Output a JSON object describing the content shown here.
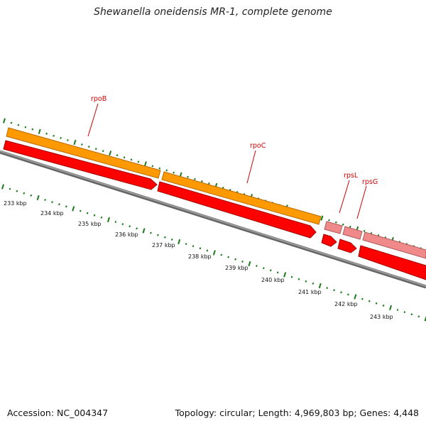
{
  "title": "Shewanella oneidensis MR-1, complete genome",
  "footer": {
    "accession": "Accession: NC_004347",
    "summary": "Topology: circular; Length: 4,969,803 bp; Genes: 4,448"
  },
  "colors": {
    "orange_feature": "#ff9900",
    "orange_dark": "#b86a00",
    "red_feature": "#ff0000",
    "red_dark": "#a00000",
    "pink_feature": "#f08a8a",
    "pink_dark": "#b05858",
    "backbone": "#8a8a8a",
    "tick": "#1a7a1a",
    "gene_label": "#cc0000"
  },
  "scale": {
    "kbp_labels": [
      "233 kbp",
      "234 kbp",
      "235 kbp",
      "236 kbp",
      "237 kbp",
      "238 kbp",
      "239 kbp",
      "240 kbp",
      "241 kbp",
      "242 kbp",
      "243 kbp"
    ]
  },
  "genes": [
    {
      "name": "rpoB"
    },
    {
      "name": "rpoC"
    },
    {
      "name": "rpsL"
    },
    {
      "name": "rpsG"
    }
  ]
}
